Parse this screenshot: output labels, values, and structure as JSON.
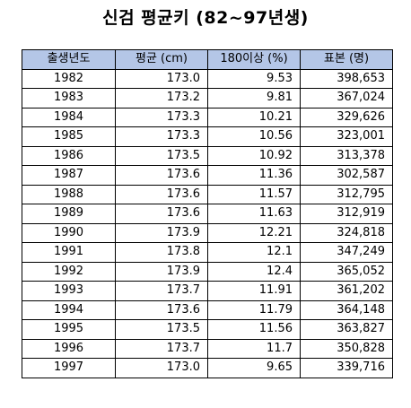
{
  "title": "신검 평균키 (82~97년생)",
  "colors": {
    "header_background": "#b4c6e7",
    "border": "#000000"
  },
  "table": {
    "headers": [
      "출생년도",
      "평균 (cm)",
      "180이상 (%)",
      "표본 (명)"
    ],
    "rows": [
      [
        "1982",
        "173.0",
        "9.53",
        "398,653"
      ],
      [
        "1983",
        "173.2",
        "9.81",
        "367,024"
      ],
      [
        "1984",
        "173.3",
        "10.21",
        "329,626"
      ],
      [
        "1985",
        "173.3",
        "10.56",
        "323,001"
      ],
      [
        "1986",
        "173.5",
        "10.92",
        "313,378"
      ],
      [
        "1987",
        "173.6",
        "11.36",
        "302,587"
      ],
      [
        "1988",
        "173.6",
        "11.57",
        "312,795"
      ],
      [
        "1989",
        "173.6",
        "11.63",
        "312,919"
      ],
      [
        "1990",
        "173.9",
        "12.21",
        "324,818"
      ],
      [
        "1991",
        "173.8",
        "12.1",
        "347,249"
      ],
      [
        "1992",
        "173.9",
        "12.4",
        "365,052"
      ],
      [
        "1993",
        "173.7",
        "11.91",
        "361,202"
      ],
      [
        "1994",
        "173.6",
        "11.79",
        "364,148"
      ],
      [
        "1995",
        "173.5",
        "11.56",
        "363,827"
      ],
      [
        "1996",
        "173.7",
        "11.7",
        "350,828"
      ],
      [
        "1997",
        "173.0",
        "9.65",
        "339,716"
      ]
    ]
  }
}
